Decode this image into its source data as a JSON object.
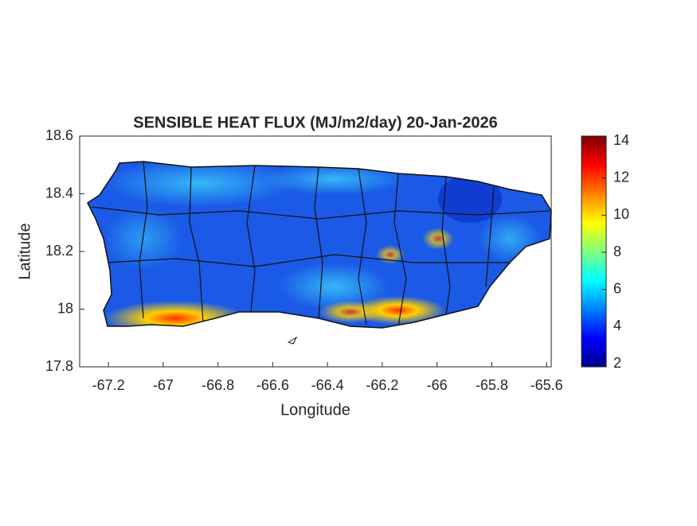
{
  "chart_data": {
    "type": "map",
    "title": "SENSIBLE HEAT FLUX (MJ/m2/day) 20-Jan-2026",
    "x_label": "Longitude",
    "y_label": "Latitude",
    "xlim": [
      -67.305,
      -65.583
    ],
    "xticks": [
      -67.2,
      -67,
      -66.8,
      -66.6,
      -66.4,
      -66.2,
      -66,
      -65.8,
      -65.6
    ],
    "ylim": [
      17.8,
      18.6
    ],
    "yticks": [
      17.8,
      18,
      18.2,
      18.4,
      18.6
    ],
    "colormap": "jet",
    "clim": [
      1.83,
      14.26
    ],
    "cticks": [
      2,
      4,
      6,
      8,
      10,
      12,
      14
    ]
  }
}
